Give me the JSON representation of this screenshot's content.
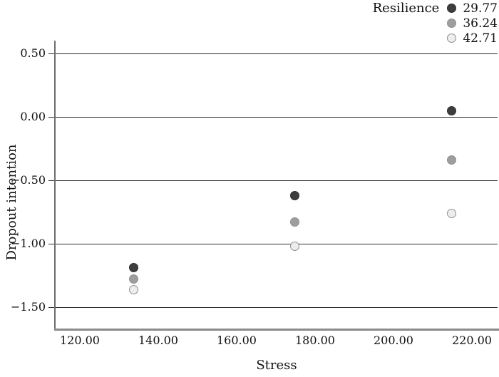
{
  "chart_data": {
    "type": "scatter",
    "title": "",
    "xlabel": "Stress",
    "ylabel": "Dropout intention",
    "legend_title": "Resilience",
    "legend_position": "top-right",
    "grid": "horizontal-only",
    "xlim": [
      113.8,
      226.5
    ],
    "ylim": [
      -1.68,
      0.6
    ],
    "x_ticks": {
      "values": [
        120,
        140,
        160,
        180,
        200,
        220
      ],
      "labels": [
        "120.00",
        "140.00",
        "160.00",
        "180.00",
        "200.00",
        "220.00"
      ]
    },
    "y_ticks": {
      "values": [
        0.5,
        0.0,
        -0.5,
        -1.0,
        -1.5
      ],
      "labels": [
        "0.50",
        "0.00",
        "−0.50",
        "−1.00",
        "−1.50"
      ]
    },
    "series": [
      {
        "name": "29.77",
        "resilience": 29.77,
        "fill": "#3e3e3e",
        "border": "#2e2e2e",
        "points": [
          {
            "x": 133.8,
            "y": -1.19
          },
          {
            "x": 174.8,
            "y": -0.62
          },
          {
            "x": 214.9,
            "y": 0.05
          }
        ]
      },
      {
        "name": "36.24",
        "resilience": 36.24,
        "fill": "#9e9e9e",
        "border": "#8f8f8f",
        "points": [
          {
            "x": 133.8,
            "y": -1.28
          },
          {
            "x": 174.8,
            "y": -0.83
          },
          {
            "x": 214.9,
            "y": -0.34
          }
        ]
      },
      {
        "name": "42.71",
        "resilience": 42.71,
        "fill": "#ededed",
        "border": "#8f8f8f",
        "points": [
          {
            "x": 133.8,
            "y": -1.36
          },
          {
            "x": 174.8,
            "y": -1.02
          },
          {
            "x": 214.9,
            "y": -0.76
          }
        ]
      }
    ]
  }
}
